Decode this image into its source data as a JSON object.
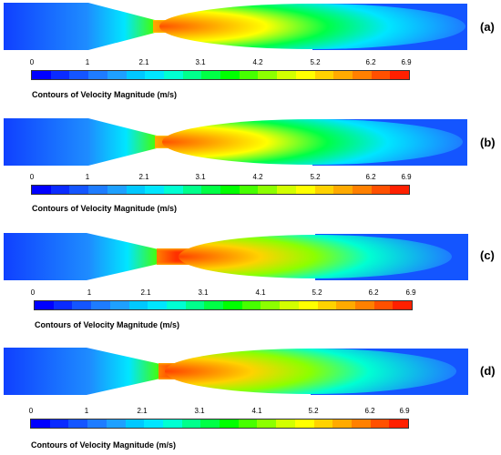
{
  "chart_data": {
    "type": "heatmap",
    "panels": [
      {
        "label": "(a)",
        "colorbar_ticks": [
          "0",
          "1",
          "2.1",
          "3.1",
          "4.2",
          "5.2",
          "6.2",
          "6.9"
        ],
        "colorbar_title": "Contours of Velocity Magnitude (m/s)",
        "vmin": 0,
        "vmax": 6.9
      },
      {
        "label": "(b)",
        "colorbar_ticks": [
          "0",
          "1",
          "2.1",
          "3.1",
          "4.2",
          "5.2",
          "6.2",
          "6.9"
        ],
        "colorbar_title": "Contours of Velocity Magnitude (m/s)",
        "vmin": 0,
        "vmax": 6.9
      },
      {
        "label": "(c)",
        "colorbar_ticks": [
          "0",
          "1",
          "2.1",
          "3.1",
          "4.1",
          "5.2",
          "6.2",
          "6.9"
        ],
        "colorbar_title": "Contours of Velocity Magnitude (m/s)",
        "vmin": 0,
        "vmax": 6.9
      },
      {
        "label": "(d)",
        "colorbar_ticks": [
          "0",
          "1",
          "2.1",
          "3.1",
          "4.1",
          "5.2",
          "6.2",
          "6.9"
        ],
        "colorbar_title": "Contours of Velocity Magnitude (m/s)",
        "vmin": 0,
        "vmax": 6.9
      }
    ],
    "colormap": [
      "#0000ff",
      "#0a2bff",
      "#1455ff",
      "#1e7cff",
      "#1ea0ff",
      "#00c8ff",
      "#00e6ff",
      "#00ffd2",
      "#00ff8c",
      "#00ff46",
      "#00ff00",
      "#46ff00",
      "#8cff00",
      "#d2ff00",
      "#ffff00",
      "#ffd200",
      "#ffaa00",
      "#ff8000",
      "#ff5000",
      "#ff2000"
    ]
  }
}
